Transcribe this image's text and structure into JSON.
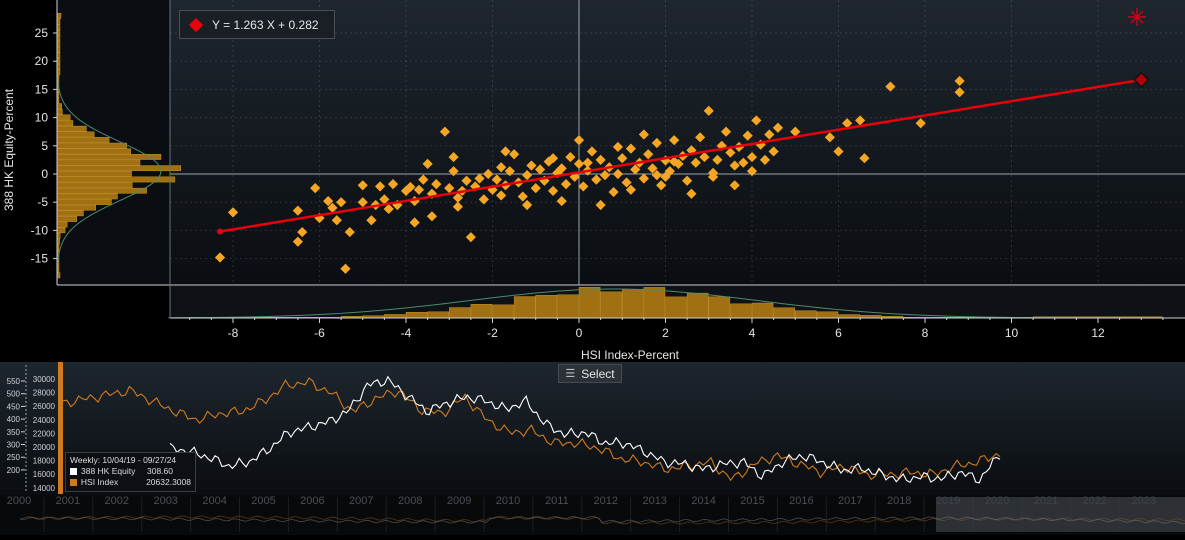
{
  "scatter": {
    "regression_label": "Y = 1.263 X + 0.282",
    "xlabel": "HSI Index-Percent",
    "ylabel": "388 HK Equity-Percent",
    "xticks": [
      -8,
      -6,
      -4,
      -2,
      0,
      2,
      4,
      6,
      8,
      10,
      12
    ],
    "yticks": [
      25,
      20,
      15,
      10,
      5,
      0,
      -5,
      -10,
      -15
    ],
    "xlim": [
      -9.5,
      13.9
    ],
    "ylim": [
      -19.5,
      30
    ],
    "colors": {
      "point": "#f5a623",
      "line": "#e8000b",
      "hist": "#a07012",
      "curve": "#4f8a6e"
    }
  },
  "select_label": "Select",
  "timeseries": {
    "period": "Weekly: 10/04/19 - 09/27/24",
    "series": [
      {
        "name": "388 HK Equity",
        "last": "308.60",
        "color": "#ffffff"
      },
      {
        "name": "HSI Index",
        "last": "20632.3008",
        "color": "#d07a1e"
      }
    ],
    "left_ticks": [
      "550",
      "500",
      "450",
      "400",
      "350",
      "300",
      "250",
      "200"
    ],
    "right_ticks": [
      "30000",
      "28000",
      "26000",
      "24000",
      "22000",
      "20000",
      "18000",
      "16000",
      "14000"
    ],
    "years": [
      "2000",
      "2001",
      "2002",
      "2003",
      "2004",
      "2005",
      "2006",
      "2007",
      "2008",
      "2009",
      "2010",
      "2011",
      "2012",
      "2013",
      "2014",
      "2015",
      "2016",
      "2017",
      "2018",
      "2019",
      "2020",
      "2021",
      "2022",
      "2023"
    ]
  },
  "chart_data": [
    {
      "type": "scatter",
      "xlabel": "HSI Index-Percent",
      "ylabel": "388 HK Equity-Percent",
      "xlim": [
        -9.5,
        13.9
      ],
      "ylim": [
        -19.5,
        30
      ],
      "regression": {
        "slope": 1.263,
        "intercept": 0.282,
        "x_range": [
          -8.3,
          13.0
        ]
      },
      "points": [
        [
          -8.3,
          -14.8
        ],
        [
          -8.0,
          -6.8
        ],
        [
          -6.5,
          -6.5
        ],
        [
          -6.5,
          -12.0
        ],
        [
          -6.4,
          -10.3
        ],
        [
          -6.1,
          -2.5
        ],
        [
          -6.0,
          -7.8
        ],
        [
          -5.8,
          -4.8
        ],
        [
          -5.7,
          -6.0
        ],
        [
          -5.6,
          -8.2
        ],
        [
          -5.5,
          -5.0
        ],
        [
          -5.3,
          -10.3
        ],
        [
          -5.4,
          -16.8
        ],
        [
          -5.0,
          -5.0
        ],
        [
          -5.0,
          -2.0
        ],
        [
          -4.8,
          -8.2
        ],
        [
          -4.7,
          -5.5
        ],
        [
          -4.6,
          -2.2
        ],
        [
          -4.5,
          -4.5
        ],
        [
          -4.4,
          -6.2
        ],
        [
          -4.2,
          -5.5
        ],
        [
          -4.0,
          -3.0
        ],
        [
          -3.9,
          -2.3
        ],
        [
          -3.8,
          -4.8
        ],
        [
          -3.8,
          -8.6
        ],
        [
          -3.7,
          -2.8
        ],
        [
          -3.6,
          -1.0
        ],
        [
          -3.5,
          1.8
        ],
        [
          -3.4,
          -3.5
        ],
        [
          -3.3,
          -1.8
        ],
        [
          -3.1,
          7.5
        ],
        [
          -3.0,
          -2.5
        ],
        [
          -2.9,
          0.5
        ],
        [
          -2.8,
          -4.2
        ],
        [
          -2.8,
          -5.8
        ],
        [
          -2.7,
          -3.0
        ],
        [
          -2.6,
          -1.2
        ],
        [
          -2.5,
          -11.2
        ],
        [
          -2.4,
          -2.2
        ],
        [
          -2.3,
          -0.8
        ],
        [
          -2.2,
          -4.5
        ],
        [
          -2.1,
          0.0
        ],
        [
          -2.0,
          -2.8
        ],
        [
          -1.9,
          -1.0
        ],
        [
          -1.8,
          1.2
        ],
        [
          -1.8,
          -3.8
        ],
        [
          -1.7,
          -2.0
        ],
        [
          -1.6,
          0.5
        ],
        [
          -1.5,
          3.5
        ],
        [
          -1.4,
          -1.5
        ],
        [
          -1.3,
          -4.0
        ],
        [
          -1.2,
          -0.2
        ],
        [
          -1.1,
          1.5
        ],
        [
          -1.0,
          -2.5
        ],
        [
          -0.9,
          0.8
        ],
        [
          -0.8,
          -1.2
        ],
        [
          -0.7,
          2.2
        ],
        [
          -0.6,
          -3.0
        ],
        [
          -0.5,
          0.2
        ],
        [
          -0.4,
          1.0
        ],
        [
          -0.3,
          -1.8
        ],
        [
          -0.2,
          3.0
        ],
        [
          -0.1,
          -0.5
        ],
        [
          0.0,
          1.8
        ],
        [
          0.1,
          -2.2
        ],
        [
          0.2,
          0.6
        ],
        [
          0.3,
          4.0
        ],
        [
          0.4,
          -1.0
        ],
        [
          0.5,
          2.5
        ],
        [
          0.6,
          -0.2
        ],
        [
          0.7,
          1.2
        ],
        [
          0.8,
          -3.2
        ],
        [
          0.9,
          0.0
        ],
        [
          1.0,
          2.8
        ],
        [
          1.1,
          -1.5
        ],
        [
          1.2,
          4.5
        ],
        [
          1.3,
          0.8
        ],
        [
          1.4,
          2.0
        ],
        [
          1.5,
          -0.8
        ],
        [
          1.6,
          3.5
        ],
        [
          1.7,
          1.0
        ],
        [
          1.8,
          5.5
        ],
        [
          1.9,
          -2.0
        ],
        [
          2.0,
          2.4
        ],
        [
          2.1,
          0.5
        ],
        [
          2.2,
          6.0
        ],
        [
          2.3,
          1.8
        ],
        [
          2.4,
          3.2
        ],
        [
          2.5,
          -1.2
        ],
        [
          2.6,
          4.2
        ],
        [
          2.7,
          2.0
        ],
        [
          2.8,
          6.5
        ],
        [
          2.9,
          3.0
        ],
        [
          3.0,
          11.2
        ],
        [
          3.1,
          -0.5
        ],
        [
          3.2,
          2.5
        ],
        [
          3.3,
          5.0
        ],
        [
          3.4,
          7.5
        ],
        [
          3.5,
          3.8
        ],
        [
          3.6,
          1.5
        ],
        [
          3.7,
          4.8
        ],
        [
          3.8,
          2.0
        ],
        [
          3.9,
          6.8
        ],
        [
          4.0,
          3.0
        ],
        [
          4.1,
          9.5
        ],
        [
          4.2,
          5.2
        ],
        [
          4.3,
          2.5
        ],
        [
          4.4,
          7.0
        ],
        [
          4.5,
          4.0
        ],
        [
          4.6,
          8.2
        ],
        [
          5.0,
          7.5
        ],
        [
          5.8,
          6.5
        ],
        [
          6.0,
          4.0
        ],
        [
          6.2,
          9.0
        ],
        [
          6.5,
          9.5
        ],
        [
          6.6,
          2.8
        ],
        [
          7.2,
          15.5
        ],
        [
          7.9,
          9.0
        ],
        [
          8.8,
          14.5
        ],
        [
          8.8,
          16.5
        ],
        [
          0.0,
          6.0
        ],
        [
          -0.6,
          2.8
        ],
        [
          1.5,
          7.0
        ],
        [
          2.0,
          -0.5
        ],
        [
          -2.9,
          3.0
        ],
        [
          -4.3,
          -1.8
        ],
        [
          0.5,
          -5.5
        ],
        [
          1.2,
          -2.8
        ],
        [
          3.6,
          -2.0
        ],
        [
          -1.2,
          -5.5
        ],
        [
          -0.4,
          -4.8
        ],
        [
          2.6,
          -3.5
        ],
        [
          3.1,
          0.2
        ],
        [
          -3.4,
          -7.5
        ],
        [
          0.9,
          4.8
        ],
        [
          1.8,
          -0.2
        ],
        [
          0.2,
          2.0
        ],
        [
          -1.7,
          4.0
        ],
        [
          4.0,
          0.5
        ],
        [
          2.2,
          2.2
        ]
      ]
    },
    {
      "type": "line",
      "title": "",
      "x": [
        "10/04/19",
        "09/27/24"
      ],
      "series": [
        {
          "name": "388 HK Equity",
          "last": 308.6
        },
        {
          "name": "HSI Index",
          "last": 20632.3008
        }
      ]
    }
  ]
}
